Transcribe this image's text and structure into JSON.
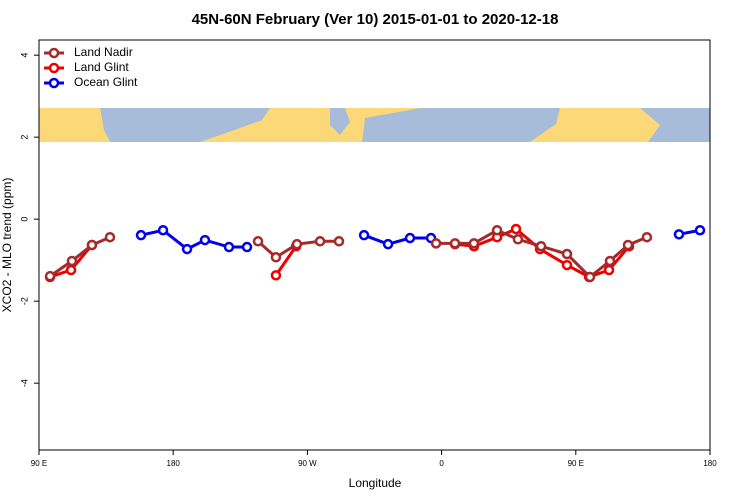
{
  "chart_data": {
    "type": "line",
    "title": "45N-60N February (Ver 10)   2015-01-01 to 2020-12-18",
    "xlabel": "Longitude",
    "ylabel": "XCO2 - MLO trend (ppm)",
    "xlim": [
      90,
      540
    ],
    "ylim": [
      -5.63,
      4.37
    ],
    "xticks": [
      {
        "value": 90,
        "label": "90 E"
      },
      {
        "value": 180,
        "label": "180"
      },
      {
        "value": 270,
        "label": "90 W"
      },
      {
        "value": 360,
        "label": "0"
      },
      {
        "value": 450,
        "label": "90 E"
      },
      {
        "value": 540,
        "label": "180"
      }
    ],
    "yticks": [
      -4,
      -2,
      0,
      2,
      4
    ],
    "legend": "top-left",
    "series": [
      {
        "name": "Land Nadir",
        "color": "#a52a2a",
        "x": [
          97.4,
          112.1,
          125.5,
          137.6,
          null,
          236.9,
          248.9,
          263.0,
          278.5,
          291.2,
          null,
          356.3,
          369.0,
          381.7,
          397.2,
          411.2,
          426.7,
          444.1,
          459.5,
          472.9,
          485.0,
          497.7
        ],
        "values": [
          -1.39,
          -1.02,
          -0.63,
          -0.44,
          null,
          -0.54,
          -0.93,
          -0.61,
          -0.54,
          -0.54,
          null,
          -0.59,
          -0.59,
          -0.59,
          -0.27,
          -0.49,
          -0.66,
          -0.85,
          -1.41,
          -1.02,
          -0.63,
          -0.44
        ]
      },
      {
        "name": "Land Glint",
        "color": "#ee0000",
        "x": [
          97.4,
          111.5,
          125.5,
          null,
          248.9,
          262.4,
          null,
          369.0,
          381.7,
          397.2,
          409.9,
          426.0,
          444.1,
          458.9,
          472.3,
          485.7
        ],
        "values": [
          -1.41,
          -1.24,
          -0.63,
          null,
          -1.37,
          -0.66,
          null,
          -0.61,
          -0.66,
          -0.44,
          -0.24,
          -0.73,
          -1.12,
          -1.41,
          -1.24,
          -0.66
        ]
      },
      {
        "name": "Ocean Glint",
        "color": "#0000ee",
        "x": [
          158.4,
          173.2,
          189.3,
          201.3,
          217.4,
          229.5,
          null,
          308.0,
          324.1,
          338.8,
          352.9,
          null,
          519.2,
          533.3
        ],
        "values": [
          -0.39,
          -0.27,
          -0.73,
          -0.51,
          -0.68,
          -0.68,
          null,
          -0.39,
          -0.61,
          -0.46,
          -0.46,
          null,
          -0.37,
          -0.27
        ]
      }
    ]
  }
}
